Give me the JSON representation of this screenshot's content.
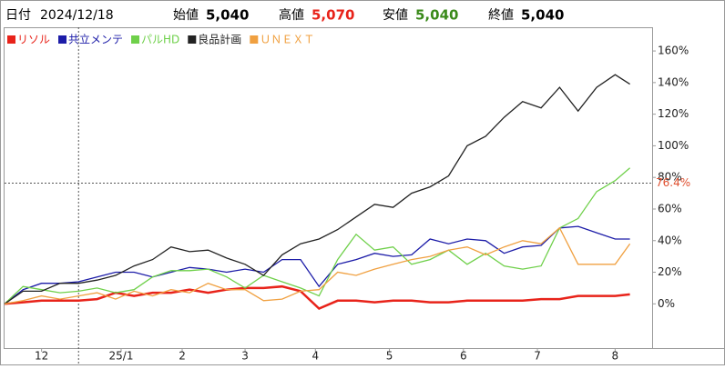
{
  "header": {
    "date_label": "日付",
    "date": "2024/12/18",
    "open_label": "始値",
    "open": "5,040",
    "high_label": "高値",
    "high": "5,070",
    "low_label": "安値",
    "low": "5,040",
    "close_label": "終値",
    "close": "5,040"
  },
  "chart_data": {
    "type": "line",
    "x": [
      0,
      5,
      10,
      15,
      20,
      25,
      30,
      35,
      40,
      45,
      50,
      55,
      60,
      65,
      70,
      75,
      80,
      85,
      90,
      95,
      100,
      105,
      110,
      115,
      120,
      125,
      130,
      135,
      140,
      145,
      150,
      155,
      160,
      165,
      169
    ],
    "xlim": [
      0,
      175
    ],
    "xticks": [
      {
        "value": 10,
        "label": "12"
      },
      {
        "value": 31.5,
        "label": "25/1"
      },
      {
        "value": 48,
        "label": "2"
      },
      {
        "value": 65,
        "label": "3"
      },
      {
        "value": 84,
        "label": "4"
      },
      {
        "value": 104,
        "label": "5"
      },
      {
        "value": 124,
        "label": "6"
      },
      {
        "value": 144,
        "label": "7"
      },
      {
        "value": 165,
        "label": "8"
      }
    ],
    "ylim": [
      -28,
      175
    ],
    "yticks": [
      {
        "value": 0,
        "label": "0%"
      },
      {
        "value": 20,
        "label": "20%"
      },
      {
        "value": 40,
        "label": "40%"
      },
      {
        "value": 60,
        "label": "60%"
      },
      {
        "value": 80,
        "label": "80%"
      },
      {
        "value": 100,
        "label": "100%"
      },
      {
        "value": 120,
        "label": "120%"
      },
      {
        "value": 140,
        "label": "140%"
      },
      {
        "value": 160,
        "label": "160%"
      }
    ],
    "grid": false,
    "crosshair": {
      "x": 20,
      "y": 76.4,
      "label": "76.4%",
      "color": "#e05030"
    },
    "series": [
      {
        "name": "リソル",
        "color": "#e8231a",
        "values": [
          0,
          1,
          2,
          2,
          2,
          3,
          7,
          5,
          7,
          7,
          9,
          7,
          9,
          10,
          10,
          11,
          8,
          -3,
          2,
          2,
          1,
          2,
          2,
          1,
          1,
          2,
          2,
          2,
          2,
          3,
          3,
          5,
          5,
          5,
          6
        ]
      },
      {
        "name": "共立メンテ",
        "color": "#1c1ca8",
        "values": [
          0,
          9,
          13,
          13,
          14,
          17,
          20,
          20,
          17,
          20,
          23,
          22,
          20,
          22,
          20,
          28,
          28,
          11,
          25,
          28,
          32,
          30,
          31,
          41,
          38,
          41,
          40,
          32,
          36,
          37,
          48,
          49,
          45,
          41,
          41
        ]
      },
      {
        "name": "パルHD",
        "color": "#6fd04a",
        "values": [
          0,
          11,
          9,
          7,
          8,
          10,
          7,
          9,
          17,
          21,
          21,
          22,
          17,
          10,
          18,
          14,
          10,
          5,
          28,
          44,
          34,
          36,
          25,
          28,
          34,
          25,
          32,
          24,
          22,
          24,
          48,
          54,
          71,
          78,
          86
        ]
      },
      {
        "name": "良品計画",
        "color": "#222222",
        "values": [
          0,
          8,
          8,
          13,
          13,
          15,
          18,
          24,
          28,
          36,
          33,
          34,
          29,
          25,
          18,
          31,
          38,
          41,
          47,
          55,
          63,
          61,
          70,
          74,
          81,
          100,
          106,
          118,
          128,
          124,
          137,
          122,
          137,
          145,
          139
        ]
      },
      {
        "name": "ＵＮＥＸＴ",
        "color": "#f0a040",
        "values": [
          0,
          2,
          5,
          3,
          5,
          7,
          3,
          8,
          5,
          9,
          7,
          13,
          9,
          9,
          2,
          3,
          8,
          9,
          20,
          18,
          22,
          25,
          28,
          30,
          34,
          36,
          31,
          36,
          40,
          38,
          48,
          25,
          25,
          25,
          38
        ]
      }
    ]
  }
}
